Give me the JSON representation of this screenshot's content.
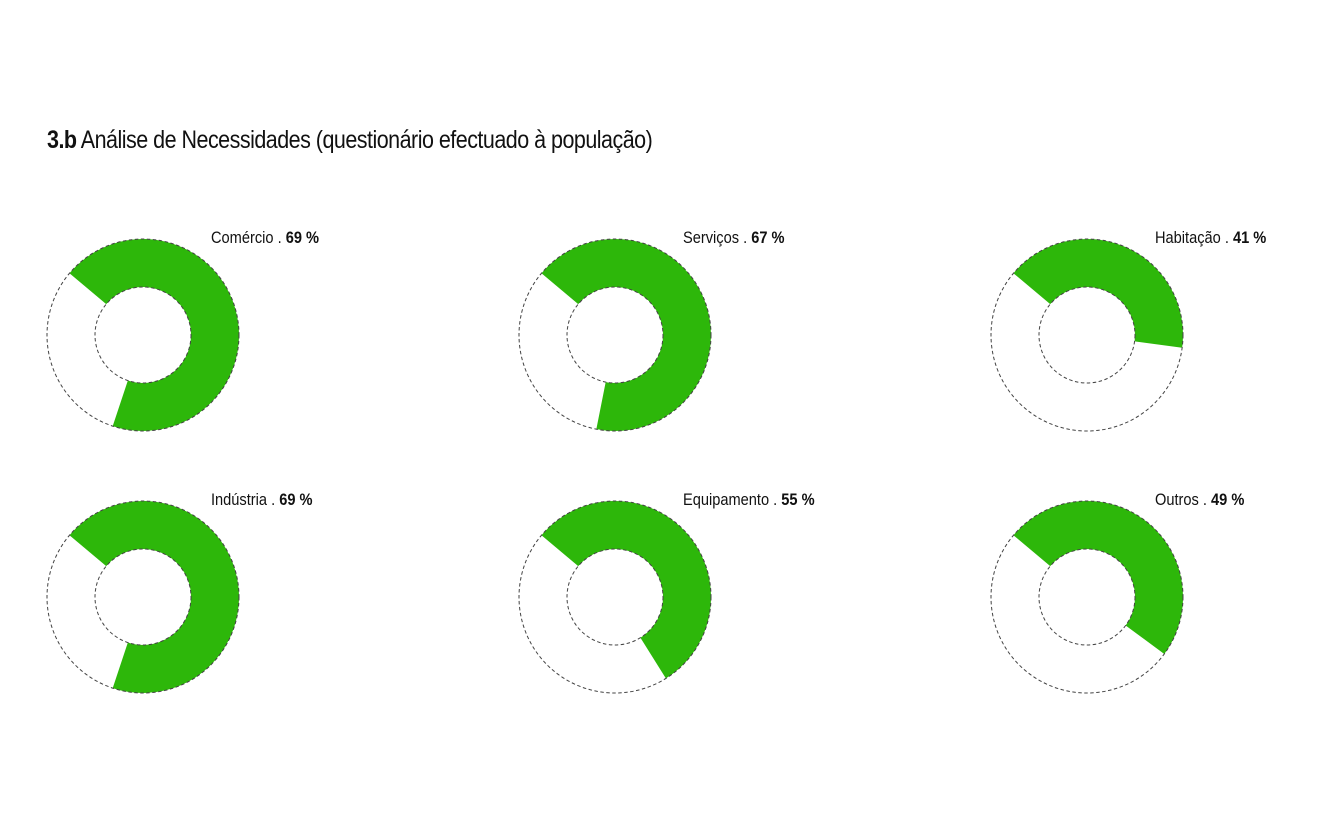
{
  "page": {
    "title_number": "3.b",
    "title_text": "Análise de Necessidades (questionário efectuado à população)"
  },
  "colors": {
    "fill": "#2db70a",
    "remainder": "#ffffff",
    "outline": "#444444",
    "text": "#111111"
  },
  "chart_data": {
    "type": "pie",
    "style": "donut",
    "legend": "none",
    "separator": " . ",
    "unit": "%",
    "series": [
      {
        "name": "Comércio",
        "value": 69,
        "label_value": "69 %"
      },
      {
        "name": "Serviços",
        "value": 67,
        "label_value": "67 %"
      },
      {
        "name": "Habitação",
        "value": 41,
        "label_value": "41 %"
      },
      {
        "name": "Indústria",
        "value": 69,
        "label_value": "69 %"
      },
      {
        "name": "Equipamento",
        "value": 55,
        "label_value": "55 %"
      },
      {
        "name": "Outros",
        "value": 49,
        "label_value": "49 %"
      }
    ]
  }
}
